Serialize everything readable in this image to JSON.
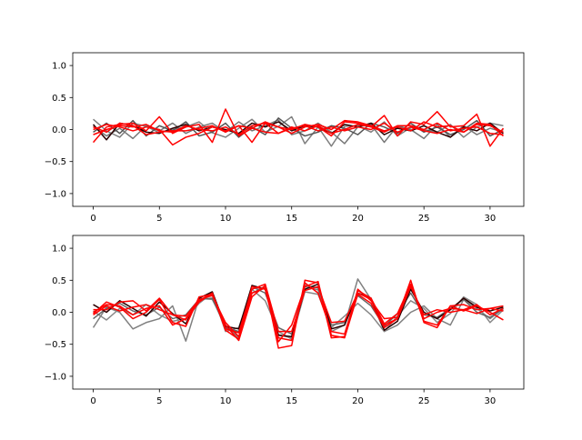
{
  "chart_data": [
    {
      "type": "line",
      "title": "",
      "xlabel": "",
      "ylabel": "",
      "xlim": [
        -1.55,
        32.55
      ],
      "ylim": [
        -1.2,
        1.2
      ],
      "xticks": [
        "0",
        "5",
        "10",
        "15",
        "20",
        "25",
        "30"
      ],
      "xtick_values": [
        0,
        5,
        10,
        15,
        20,
        25,
        30
      ],
      "yticks": [
        "−1.0",
        "−0.5",
        "0.0",
        "0.5",
        "1.0"
      ],
      "ytick_values": [
        -1.0,
        -0.5,
        0.0,
        0.5,
        1.0
      ],
      "grid": false,
      "x": [
        0,
        1,
        2,
        3,
        4,
        5,
        6,
        7,
        8,
        9,
        10,
        11,
        12,
        13,
        14,
        15,
        16,
        17,
        18,
        19,
        20,
        21,
        22,
        23,
        24,
        25,
        26,
        27,
        28,
        29,
        30,
        31
      ],
      "series": [
        {
          "color": "#808080",
          "values": [
            0.16,
            -0.02,
            -0.12,
            0.1,
            0.05,
            -0.05,
            0.0,
            0.04,
            0.12,
            -0.05,
            -0.12,
            0.02,
            0.16,
            -0.04,
            0.05,
            0.2,
            -0.22,
            0.04,
            -0.26,
            0.05,
            0.06,
            -0.04,
            0.12,
            -0.1,
            0.03,
            0.0,
            -0.04,
            0.08,
            -0.12,
            0.04,
            0.1,
            0.06
          ]
        },
        {
          "color": "#777777",
          "values": [
            0.05,
            -0.1,
            0.02,
            -0.14,
            0.06,
            -0.02,
            0.1,
            -0.06,
            0.04,
            0.1,
            -0.04,
            0.12,
            -0.02,
            0.06,
            0.15,
            -0.08,
            -0.02,
            0.1,
            -0.04,
            -0.22,
            0.04,
            0.08,
            -0.2,
            0.06,
            0.0,
            -0.14,
            0.08,
            -0.12,
            0.06,
            -0.08,
            0.02,
            -0.04
          ]
        },
        {
          "color": "#555555",
          "values": [
            -0.04,
            0.1,
            -0.06,
            0.14,
            -0.1,
            0.06,
            -0.02,
            0.12,
            -0.1,
            -0.04,
            0.1,
            -0.12,
            0.04,
            -0.08,
            0.18,
            0.02,
            -0.1,
            -0.04,
            0.06,
            0.02,
            -0.08,
            0.1,
            0.04,
            -0.06,
            0.1,
            -0.04,
            0.04,
            -0.08,
            0.0,
            0.14,
            -0.1,
            0.0
          ]
        },
        {
          "color": "#2a0000",
          "values": [
            0.08,
            -0.16,
            0.1,
            0.06,
            -0.04,
            -0.06,
            0.02,
            0.08,
            -0.02,
            0.04,
            0.0,
            -0.06,
            0.1,
            0.04,
            0.12,
            -0.02,
            0.06,
            0.04,
            -0.06,
            0.08,
            0.04,
            0.1,
            -0.08,
            0.02,
            -0.02,
            0.06,
            -0.04,
            -0.12,
            0.04,
            -0.02,
            0.1,
            -0.06
          ]
        },
        {
          "color": "#ff0000",
          "values": [
            -0.2,
            0.04,
            0.08,
            0.1,
            -0.02,
            0.2,
            -0.06,
            0.04,
            0.08,
            -0.2,
            0.32,
            -0.1,
            0.02,
            0.12,
            0.04,
            0.0,
            0.08,
            0.04,
            -0.1,
            0.12,
            0.1,
            0.04,
            0.22,
            -0.1,
            0.12,
            0.08,
            0.28,
            0.04,
            0.06,
            0.24,
            -0.26,
            0.02
          ]
        },
        {
          "color": "#ff0000",
          "values": [
            0.0,
            0.08,
            0.04,
            -0.02,
            0.04,
            0.0,
            -0.24,
            -0.12,
            -0.06,
            0.04,
            -0.02,
            0.06,
            -0.2,
            0.1,
            0.04,
            -0.06,
            0.04,
            0.08,
            0.0,
            0.14,
            0.12,
            0.06,
            -0.02,
            0.04,
            -0.02,
            0.12,
            0.04,
            0.06,
            -0.04,
            0.1,
            0.08,
            -0.1
          ]
        },
        {
          "color": "#ff0000",
          "values": [
            -0.08,
            0.0,
            0.06,
            0.04,
            0.08,
            -0.02,
            -0.04,
            0.06,
            0.0,
            -0.02,
            0.04,
            -0.08,
            0.06,
            0.1,
            -0.06,
            0.02,
            0.06,
            -0.02,
            0.04,
            -0.02,
            0.04,
            0.0,
            0.1,
            -0.04,
            0.04,
            -0.02,
            -0.06,
            0.0,
            -0.04,
            0.08,
            0.06,
            -0.04
          ]
        },
        {
          "color": "#ff0000",
          "values": [
            0.04,
            -0.04,
            0.1,
            0.06,
            -0.08,
            -0.04,
            -0.02,
            -0.02,
            0.02,
            0.06,
            -0.04,
            0.06,
            0.02,
            -0.04,
            -0.06,
            0.04,
            -0.02,
            0.06,
            -0.06,
            0.0,
            0.08,
            0.04,
            -0.04,
            0.06,
            0.06,
            0.0,
            0.1,
            -0.02,
            0.02,
            0.04,
            -0.06,
            -0.08
          ]
        }
      ]
    },
    {
      "type": "line",
      "title": "",
      "xlabel": "",
      "ylabel": "",
      "xlim": [
        -1.55,
        32.55
      ],
      "ylim": [
        -1.2,
        1.2
      ],
      "xticks": [
        "0",
        "5",
        "10",
        "15",
        "20",
        "25",
        "30"
      ],
      "xtick_values": [
        0,
        5,
        10,
        15,
        20,
        25,
        30
      ],
      "yticks": [
        "−1.0",
        "−0.5",
        "0.0",
        "0.5",
        "1.0"
      ],
      "ytick_values": [
        -1.0,
        -0.5,
        0.0,
        0.5,
        1.0
      ],
      "grid": false,
      "x": [
        0,
        1,
        2,
        3,
        4,
        5,
        6,
        7,
        8,
        9,
        10,
        11,
        12,
        13,
        14,
        15,
        16,
        17,
        18,
        19,
        20,
        21,
        22,
        23,
        24,
        25,
        26,
        27,
        28,
        29,
        30,
        31
      ],
      "series": [
        {
          "color": "#808080",
          "values": [
            -0.24,
            0.08,
            0.0,
            -0.26,
            -0.16,
            -0.1,
            0.1,
            -0.45,
            0.22,
            0.2,
            -0.2,
            -0.4,
            0.3,
            0.4,
            -0.35,
            -0.4,
            0.4,
            0.35,
            -0.3,
            -0.2,
            0.52,
            0.2,
            -0.3,
            -0.2,
            0.0,
            0.1,
            -0.1,
            -0.2,
            0.2,
            0.06,
            -0.1,
            0.06
          ]
        },
        {
          "color": "#888888",
          "values": [
            0.02,
            -0.12,
            0.06,
            -0.04,
            0.12,
            -0.04,
            -0.14,
            -0.1,
            0.14,
            0.3,
            -0.3,
            -0.24,
            0.36,
            0.18,
            -0.3,
            -0.42,
            0.32,
            0.28,
            -0.24,
            -0.06,
            0.14,
            -0.04,
            -0.3,
            -0.06,
            0.18,
            0.06,
            -0.16,
            -0.02,
            0.24,
            0.12,
            -0.16,
            0.04
          ]
        },
        {
          "color": "#666666",
          "values": [
            -0.1,
            0.06,
            0.14,
            0.02,
            -0.04,
            0.08,
            -0.1,
            -0.04,
            0.2,
            0.22,
            -0.24,
            -0.3,
            0.4,
            0.3,
            -0.24,
            -0.34,
            0.42,
            0.38,
            -0.2,
            -0.16,
            0.26,
            0.1,
            -0.22,
            -0.02,
            0.3,
            -0.04,
            -0.08,
            0.06,
            0.2,
            0.0,
            -0.08,
            0.06
          ]
        },
        {
          "color": "#2a0000",
          "values": [
            0.12,
            0.0,
            0.18,
            0.06,
            -0.06,
            0.16,
            -0.02,
            -0.18,
            0.22,
            0.32,
            -0.22,
            -0.26,
            0.42,
            0.36,
            -0.36,
            -0.38,
            0.36,
            0.44,
            -0.26,
            -0.2,
            0.3,
            0.22,
            -0.28,
            -0.14,
            0.36,
            0.0,
            -0.1,
            0.04,
            0.22,
            0.08,
            0.02,
            0.08
          ]
        },
        {
          "color": "#ff0000",
          "values": [
            -0.02,
            0.16,
            0.08,
            -0.1,
            0.0,
            0.2,
            -0.16,
            -0.22,
            0.24,
            0.28,
            -0.2,
            -0.44,
            0.24,
            0.42,
            -0.56,
            -0.52,
            0.5,
            0.46,
            -0.4,
            -0.38,
            0.36,
            0.18,
            -0.1,
            -0.08,
            0.5,
            -0.16,
            -0.24,
            0.1,
            0.02,
            0.1,
            0.0,
            -0.12
          ]
        },
        {
          "color": "#ff0000",
          "values": [
            -0.04,
            0.1,
            0.02,
            0.08,
            0.12,
            0.04,
            -0.04,
            -0.12,
            0.16,
            0.3,
            -0.26,
            -0.32,
            0.36,
            0.44,
            -0.3,
            -0.3,
            0.34,
            0.4,
            -0.16,
            -0.14,
            0.3,
            0.2,
            -0.2,
            -0.1,
            0.4,
            -0.04,
            0.04,
            0.0,
            0.04,
            -0.02,
            0.06,
            0.02
          ]
        },
        {
          "color": "#ff0000",
          "values": [
            0.04,
            0.04,
            0.16,
            0.18,
            0.02,
            0.22,
            -0.04,
            -0.06,
            0.2,
            0.26,
            -0.16,
            -0.38,
            0.3,
            0.38,
            -0.4,
            -0.44,
            0.46,
            0.3,
            -0.3,
            -0.34,
            0.34,
            0.22,
            -0.18,
            -0.02,
            0.44,
            -0.14,
            -0.2,
            0.1,
            0.12,
            0.04,
            0.06,
            0.1
          ]
        },
        {
          "color": "#ff0000",
          "values": [
            0.0,
            0.12,
            0.1,
            -0.04,
            0.06,
            0.1,
            -0.2,
            -0.1,
            0.18,
            0.3,
            -0.28,
            -0.42,
            0.4,
            0.36,
            -0.46,
            -0.2,
            0.4,
            0.48,
            -0.36,
            -0.4,
            0.28,
            0.14,
            -0.24,
            -0.1,
            0.44,
            -0.1,
            0.0,
            0.06,
            0.04,
            0.12,
            -0.04,
            0.06
          ]
        }
      ]
    }
  ]
}
